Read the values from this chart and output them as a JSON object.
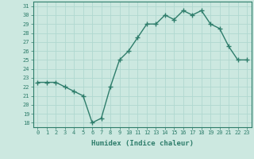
{
  "xlabel": "Humidex (Indice chaleur)",
  "x": [
    0,
    1,
    2,
    3,
    4,
    5,
    6,
    7,
    8,
    9,
    10,
    11,
    12,
    13,
    14,
    15,
    16,
    17,
    18,
    19,
    20,
    21,
    22,
    23
  ],
  "y": [
    22.5,
    22.5,
    22.5,
    22.0,
    21.5,
    21.0,
    18.0,
    18.5,
    22.0,
    25.0,
    26.0,
    27.5,
    29.0,
    29.0,
    30.0,
    29.5,
    30.5,
    30.0,
    30.5,
    29.0,
    28.5,
    26.5,
    25.0,
    25.0
  ],
  "ylim": [
    17.5,
    31.5
  ],
  "xlim": [
    -0.5,
    23.5
  ],
  "yticks": [
    18,
    19,
    20,
    21,
    22,
    23,
    24,
    25,
    26,
    27,
    28,
    29,
    30,
    31
  ],
  "xticks": [
    0,
    1,
    2,
    3,
    4,
    5,
    6,
    7,
    8,
    9,
    10,
    11,
    12,
    13,
    14,
    15,
    16,
    17,
    18,
    19,
    20,
    21,
    22,
    23
  ],
  "line_color": "#2e7d6b",
  "marker": "+",
  "bg_color": "#cce8e0",
  "grid_color": "#b0d8d0",
  "tick_label_color": "#2e7d6b",
  "label_color": "#2e7d6b",
  "linewidth": 1.0,
  "markersize": 4,
  "markeredgewidth": 1.0
}
